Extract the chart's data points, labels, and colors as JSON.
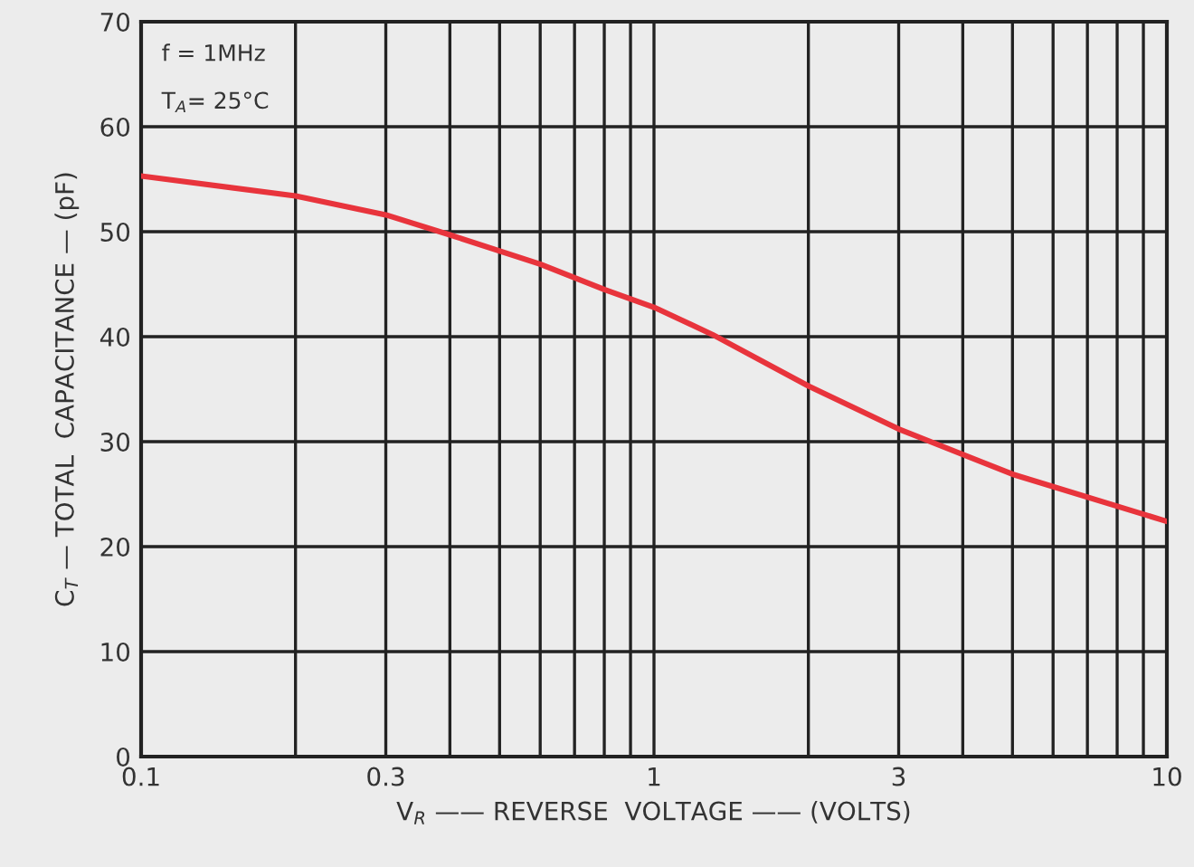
{
  "chart_data": {
    "type": "line",
    "xlabel": "V$_{R}$ —— REVERSE  VOLTAGE —— (VOLTS)",
    "ylabel": "C$_{T}$ — TOTAL  CAPACITANCE — (pF)",
    "log": "x",
    "grid": true,
    "marker": "none",
    "line_style": "solid",
    "annotations": [
      "f = 1MHz",
      "T$_{A}$= 25°C"
    ],
    "xlim": [
      0.1,
      10
    ],
    "ylim": [
      0,
      70
    ],
    "xticks": [
      0.1,
      {
        "value": 0.2,
        "label": null
      },
      0.3,
      {
        "value": 0.4,
        "label": null
      },
      {
        "value": 0.5,
        "label": null
      },
      {
        "value": 0.6,
        "label": null
      },
      {
        "value": 0.7,
        "label": null
      },
      {
        "value": 0.8,
        "label": null
      },
      {
        "value": 0.9,
        "label": null
      },
      1,
      {
        "value": 2,
        "label": null
      },
      3,
      {
        "value": 4,
        "label": null
      },
      {
        "value": 5,
        "label": null
      },
      {
        "value": 6,
        "label": null
      },
      {
        "value": 7,
        "label": null
      },
      {
        "value": 8,
        "label": null
      },
      {
        "value": 9,
        "label": null
      },
      10
    ],
    "yticks": [
      0,
      10,
      20,
      30,
      40,
      50,
      60,
      70
    ],
    "series": [
      {
        "color": "#e8343c",
        "x": [
          0.1,
          0.2,
          0.3,
          0.4,
          0.6,
          0.8,
          1.0,
          1.3,
          2,
          3,
          5,
          10
        ],
        "values": [
          55.3,
          53.4,
          51.6,
          49.7,
          46.9,
          44.5,
          42.8,
          40.2,
          35.3,
          31.2,
          26.9,
          22.4
        ]
      }
    ]
  }
}
